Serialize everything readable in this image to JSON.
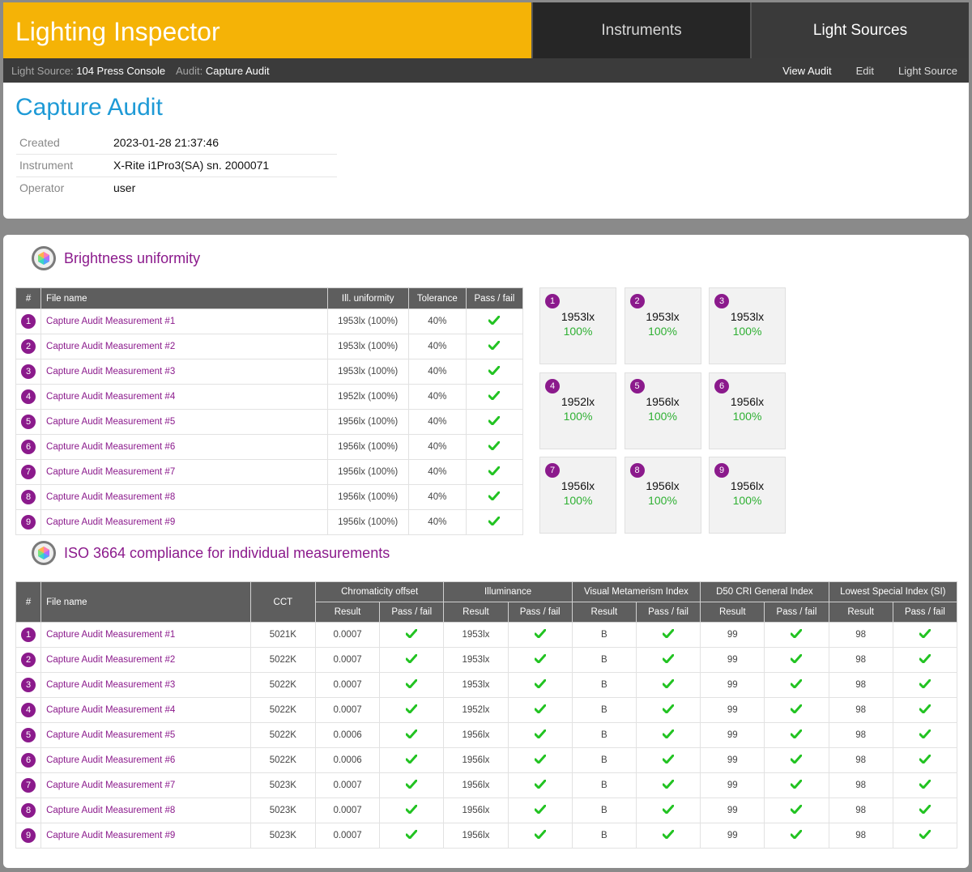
{
  "app": {
    "title": "Lighting Inspector"
  },
  "topnav": {
    "instruments": "Instruments",
    "light_sources": "Light Sources"
  },
  "breadcrumb": {
    "light_source_label": "Light Source:",
    "light_source_value": "104 Press Console",
    "audit_label": "Audit:",
    "audit_value": "Capture Audit"
  },
  "subnav": {
    "view_audit": "View Audit",
    "edit": "Edit",
    "light_source": "Light Source"
  },
  "audit": {
    "title": "Capture Audit",
    "info": [
      {
        "key": "Created",
        "value": "2023-01-28 21:37:46"
      },
      {
        "key": "Instrument",
        "value": "X-Rite i1Pro3(SA) sn. 2000071"
      },
      {
        "key": "Operator",
        "value": "user"
      }
    ]
  },
  "brightness": {
    "title": "Brightness uniformity",
    "headers": [
      "#",
      "File name",
      "Ill. uniformity",
      "Tolerance",
      "Pass / fail"
    ],
    "rows": [
      {
        "n": "1",
        "file": "Capture Audit Measurement #1",
        "uniformity": "1953lx (100%)",
        "tolerance": "40%"
      },
      {
        "n": "2",
        "file": "Capture Audit Measurement #2",
        "uniformity": "1953lx (100%)",
        "tolerance": "40%"
      },
      {
        "n": "3",
        "file": "Capture Audit Measurement #3",
        "uniformity": "1953lx (100%)",
        "tolerance": "40%"
      },
      {
        "n": "4",
        "file": "Capture Audit Measurement #4",
        "uniformity": "1952lx (100%)",
        "tolerance": "40%"
      },
      {
        "n": "5",
        "file": "Capture Audit Measurement #5",
        "uniformity": "1956lx (100%)",
        "tolerance": "40%"
      },
      {
        "n": "6",
        "file": "Capture Audit Measurement #6",
        "uniformity": "1956lx (100%)",
        "tolerance": "40%"
      },
      {
        "n": "7",
        "file": "Capture Audit Measurement #7",
        "uniformity": "1956lx (100%)",
        "tolerance": "40%"
      },
      {
        "n": "8",
        "file": "Capture Audit Measurement #8",
        "uniformity": "1956lx (100%)",
        "tolerance": "40%"
      },
      {
        "n": "9",
        "file": "Capture Audit Measurement #9",
        "uniformity": "1956lx (100%)",
        "tolerance": "40%"
      }
    ],
    "tiles": [
      {
        "n": "1",
        "lux": "1953lx",
        "pct": "100%"
      },
      {
        "n": "2",
        "lux": "1953lx",
        "pct": "100%"
      },
      {
        "n": "3",
        "lux": "1953lx",
        "pct": "100%"
      },
      {
        "n": "4",
        "lux": "1952lx",
        "pct": "100%"
      },
      {
        "n": "5",
        "lux": "1956lx",
        "pct": "100%"
      },
      {
        "n": "6",
        "lux": "1956lx",
        "pct": "100%"
      },
      {
        "n": "7",
        "lux": "1956lx",
        "pct": "100%"
      },
      {
        "n": "8",
        "lux": "1956lx",
        "pct": "100%"
      },
      {
        "n": "9",
        "lux": "1956lx",
        "pct": "100%"
      }
    ]
  },
  "iso": {
    "title": "ISO 3664 compliance for individual measurements",
    "headers": {
      "num": "#",
      "file": "File name",
      "cct": "CCT",
      "groups": [
        "Chromaticity offset",
        "Illuminance",
        "Visual Metamerism Index",
        "D50 CRI General Index",
        "Lowest Special Index (SI)"
      ],
      "result": "Result",
      "pass": "Pass / fail"
    },
    "rows": [
      {
        "n": "1",
        "file": "Capture Audit Measurement #1",
        "cct": "5021K",
        "chroma": "0.0007",
        "illum": "1953lx",
        "vmi": "B",
        "cri": "99",
        "si": "98"
      },
      {
        "n": "2",
        "file": "Capture Audit Measurement #2",
        "cct": "5022K",
        "chroma": "0.0007",
        "illum": "1953lx",
        "vmi": "B",
        "cri": "99",
        "si": "98"
      },
      {
        "n": "3",
        "file": "Capture Audit Measurement #3",
        "cct": "5022K",
        "chroma": "0.0007",
        "illum": "1953lx",
        "vmi": "B",
        "cri": "99",
        "si": "98"
      },
      {
        "n": "4",
        "file": "Capture Audit Measurement #4",
        "cct": "5022K",
        "chroma": "0.0007",
        "illum": "1952lx",
        "vmi": "B",
        "cri": "99",
        "si": "98"
      },
      {
        "n": "5",
        "file": "Capture Audit Measurement #5",
        "cct": "5022K",
        "chroma": "0.0006",
        "illum": "1956lx",
        "vmi": "B",
        "cri": "99",
        "si": "98"
      },
      {
        "n": "6",
        "file": "Capture Audit Measurement #6",
        "cct": "5022K",
        "chroma": "0.0006",
        "illum": "1956lx",
        "vmi": "B",
        "cri": "99",
        "si": "98"
      },
      {
        "n": "7",
        "file": "Capture Audit Measurement #7",
        "cct": "5023K",
        "chroma": "0.0007",
        "illum": "1956lx",
        "vmi": "B",
        "cri": "99",
        "si": "98"
      },
      {
        "n": "8",
        "file": "Capture Audit Measurement #8",
        "cct": "5023K",
        "chroma": "0.0007",
        "illum": "1956lx",
        "vmi": "B",
        "cri": "99",
        "si": "98"
      },
      {
        "n": "9",
        "file": "Capture Audit Measurement #9",
        "cct": "5023K",
        "chroma": "0.0007",
        "illum": "1956lx",
        "vmi": "B",
        "cri": "99",
        "si": "98"
      }
    ]
  },
  "colors": {
    "brand": "#f5b306",
    "accent": "#8b1a8c",
    "title": "#1e9ad6",
    "pass": "#2fb033"
  },
  "icons": {
    "pass": "check-icon",
    "section": "hexagon-logo-icon"
  }
}
